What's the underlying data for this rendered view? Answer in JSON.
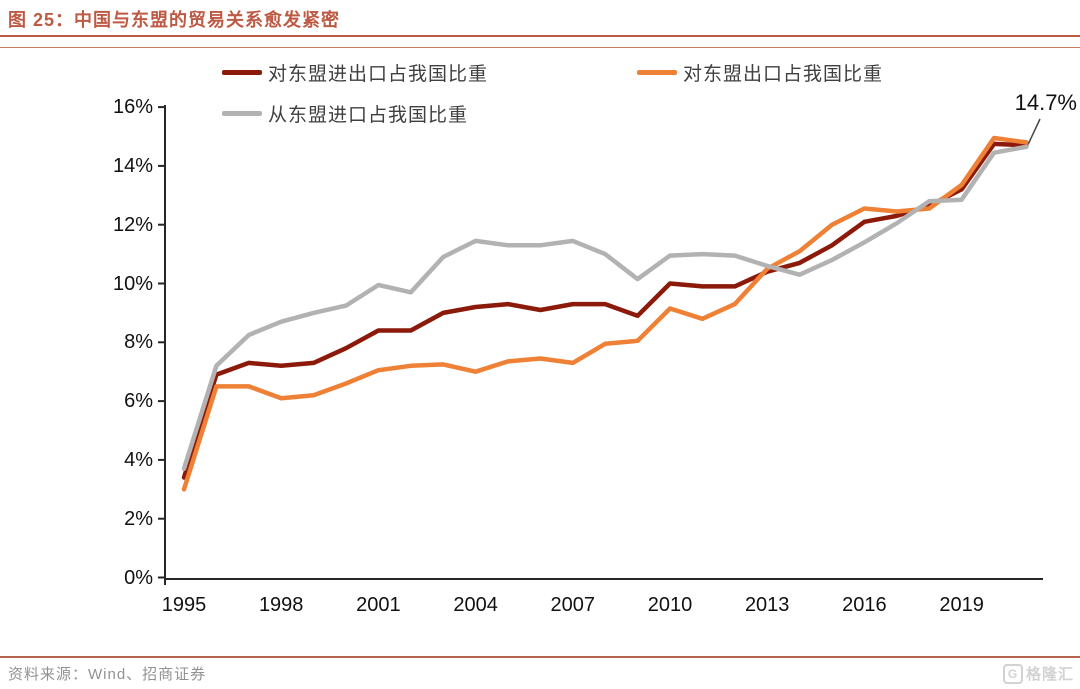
{
  "header": {
    "title": "图 25：中国与东盟的贸易关系愈发紧密"
  },
  "colors": {
    "accent": "#be5a44",
    "axis": "#262626"
  },
  "footer": {
    "source": "资料来源：Wind、招商证券",
    "watermark": "格隆汇",
    "watermark_logo_letter": "G"
  },
  "chart_data": {
    "type": "line",
    "title": "中国与东盟的贸易关系愈发紧密",
    "grid": false,
    "legend_position": "top",
    "ylim": [
      0,
      16
    ],
    "y_ticks": [
      "0%",
      "2%",
      "4%",
      "6%",
      "8%",
      "10%",
      "12%",
      "14%",
      "16%"
    ],
    "x_tick_labels": [
      "1995",
      "1998",
      "2001",
      "2004",
      "2007",
      "2010",
      "2013",
      "2016",
      "2019"
    ],
    "x": [
      1995,
      1996,
      1997,
      1998,
      1999,
      2000,
      2001,
      2002,
      2003,
      2004,
      2005,
      2006,
      2007,
      2008,
      2009,
      2010,
      2011,
      2012,
      2013,
      2014,
      2015,
      2016,
      2017,
      2018,
      2019,
      2020,
      2021
    ],
    "series": [
      {
        "name": "对东盟进出口占我国比重",
        "color": "#8c1a0a",
        "values": [
          3.4,
          6.9,
          7.3,
          7.2,
          7.3,
          7.8,
          8.4,
          8.4,
          9.0,
          9.2,
          9.3,
          9.1,
          9.3,
          9.3,
          8.9,
          10.0,
          9.9,
          9.9,
          10.4,
          10.7,
          11.3,
          12.1,
          12.3,
          12.65,
          13.2,
          14.75,
          14.7
        ]
      },
      {
        "name": "对东盟出口占我国比重",
        "color": "#ef8136",
        "values": [
          3.0,
          6.5,
          6.5,
          6.1,
          6.2,
          6.6,
          7.05,
          7.2,
          7.25,
          7.0,
          7.35,
          7.45,
          7.3,
          7.95,
          8.05,
          9.15,
          8.8,
          9.3,
          10.5,
          11.1,
          12.0,
          12.55,
          12.45,
          12.55,
          13.35,
          14.95,
          14.8
        ]
      },
      {
        "name": "从东盟进口占我国比重",
        "color": "#b2b2b2",
        "values": [
          3.7,
          7.2,
          8.25,
          8.7,
          9.0,
          9.25,
          9.95,
          9.7,
          10.9,
          11.45,
          11.3,
          11.3,
          11.45,
          11.0,
          10.15,
          10.95,
          11.0,
          10.95,
          10.6,
          10.3,
          10.8,
          11.4,
          12.05,
          12.8,
          12.85,
          14.45,
          14.65
        ]
      }
    ],
    "annotation": {
      "text": "14.7%",
      "year": 2021,
      "value": 14.7
    }
  }
}
